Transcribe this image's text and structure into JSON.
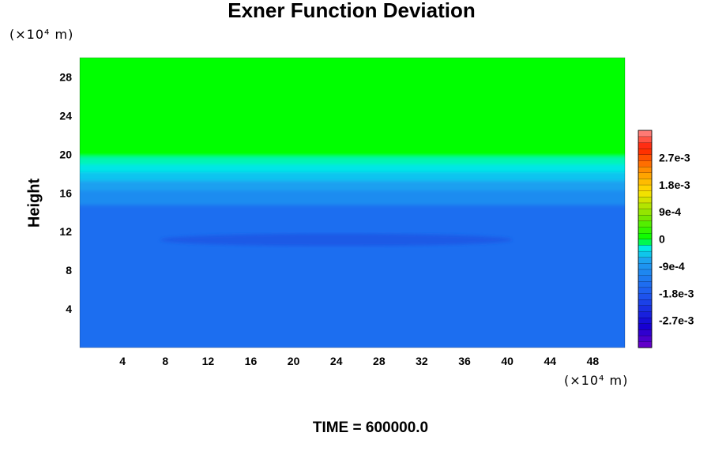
{
  "chart_data": {
    "type": "heatmap",
    "title": "Exner Function Deviation",
    "ylabel": "Height",
    "xunit": "(×10⁴ m)",
    "yunit": "(×10⁴ m)",
    "footer": "TIME = 600000.0",
    "xlim": [
      0,
      51
    ],
    "ylim": [
      0,
      30
    ],
    "xticks": [
      "4",
      "8",
      "12",
      "16",
      "20",
      "24",
      "28",
      "32",
      "36",
      "40",
      "44",
      "48"
    ],
    "xtick_values": [
      4,
      8,
      12,
      16,
      20,
      24,
      28,
      32,
      36,
      40,
      44,
      48
    ],
    "yticks": [
      "4",
      "8",
      "12",
      "16",
      "20",
      "24",
      "28"
    ],
    "ytick_values": [
      4,
      8,
      12,
      16,
      20,
      24,
      28
    ],
    "colorbar": {
      "range": [
        -0.0036,
        0.0036
      ],
      "levels": 36,
      "tick_labels": [
        "2.7e-3",
        "1.8e-3",
        "9e-4",
        "0",
        "-9e-4",
        "-1.8e-3",
        "-2.7e-3"
      ],
      "tick_values": [
        0.0027,
        0.0018,
        0.0009,
        0,
        -0.0009,
        -0.0018,
        -0.0027
      ]
    },
    "bands": [
      {
        "from_height": 0,
        "to_height": 15,
        "value": -0.0019,
        "color": "#1e6ef0"
      },
      {
        "from_height": 15,
        "to_height": 16.5,
        "value": -0.0015,
        "color": "#1e8cf0"
      },
      {
        "from_height": 16.5,
        "to_height": 17.5,
        "value": -0.0011,
        "color": "#1ea0f0"
      },
      {
        "from_height": 17.5,
        "to_height": 18.4,
        "value": -0.0008,
        "color": "#10c4f0"
      },
      {
        "from_height": 18.4,
        "to_height": 19.2,
        "value": -0.0005,
        "color": "#00e6e6"
      },
      {
        "from_height": 19.2,
        "to_height": 20,
        "value": -0.0002,
        "color": "#00f5b4"
      },
      {
        "from_height": 20,
        "to_height": 30,
        "value": 0,
        "color": "#00ff00"
      }
    ],
    "features": [
      {
        "label": "low-pressure band",
        "x_range": [
          7.5,
          40.5
        ],
        "height_range": [
          10.5,
          11.8
        ],
        "value": -0.0023,
        "color": "#1a5ae6"
      }
    ]
  }
}
